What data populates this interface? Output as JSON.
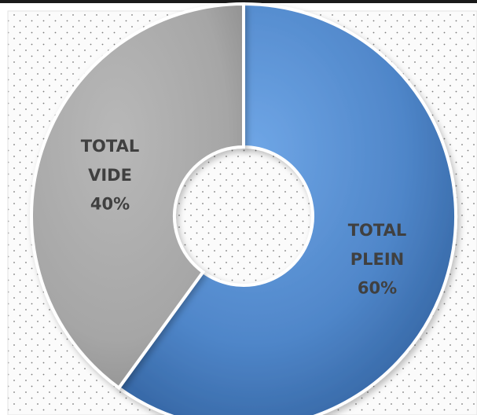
{
  "chart_data": {
    "type": "pie",
    "style": "donut",
    "title": "",
    "categories": [
      "TOTAL PLEIN",
      "TOTAL VIDE"
    ],
    "values": [
      60,
      40
    ],
    "units": "%",
    "colors": [
      "#4f86c9",
      "#a9a9a9"
    ],
    "slices": [
      {
        "name": "TOTAL PLEIN",
        "value": 60,
        "label_lines": [
          "TOTAL",
          "PLEIN",
          "60%"
        ],
        "color": "#4f86c9"
      },
      {
        "name": "TOTAL VIDE",
        "value": 40,
        "label_lines": [
          "TOTAL",
          "VIDE",
          "40%"
        ],
        "color": "#a9a9a9"
      }
    ],
    "legend": "none",
    "background": "dotted"
  }
}
